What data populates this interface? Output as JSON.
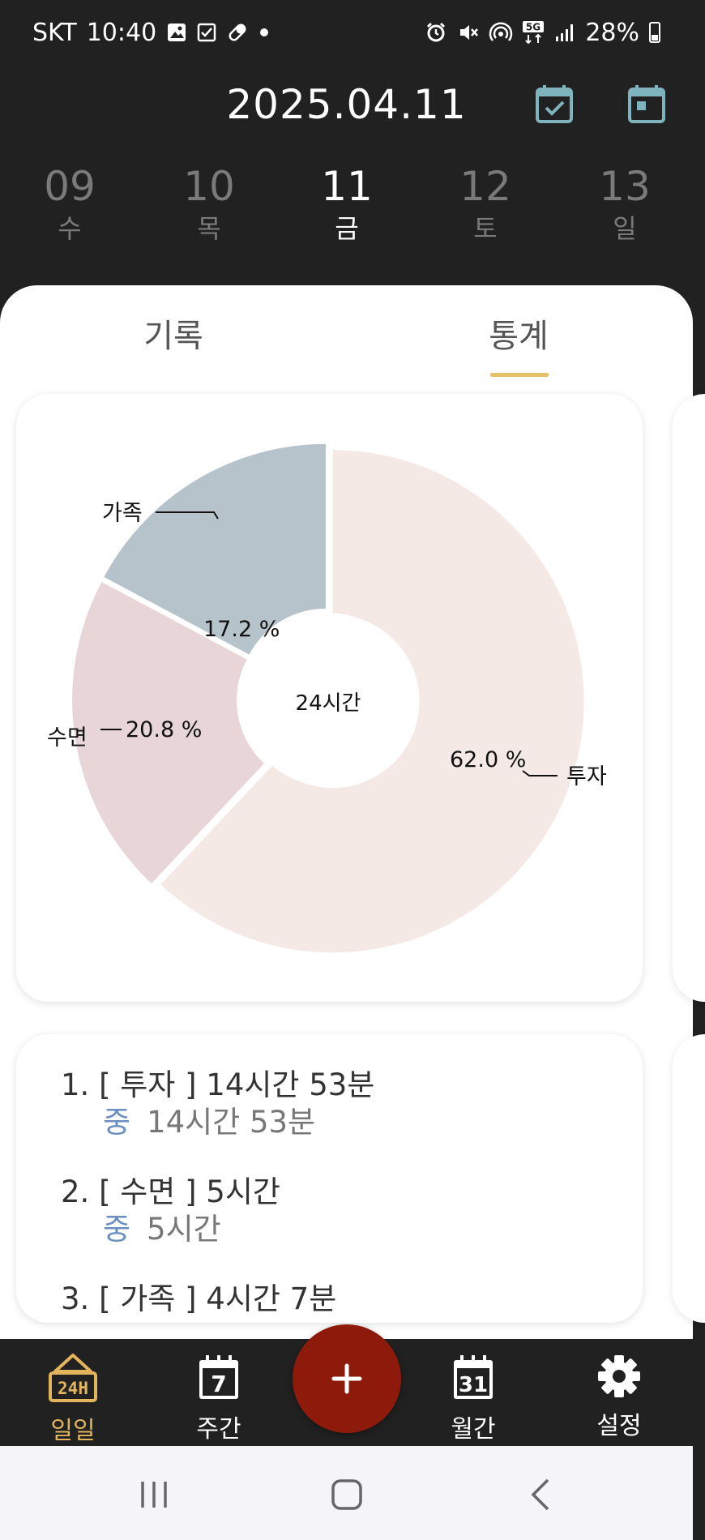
{
  "status_bar": {
    "carrier": "SKT",
    "time": "10:40",
    "network": "5G",
    "battery": "28%"
  },
  "header": {
    "date": "2025.04.11"
  },
  "days": [
    {
      "num": "09",
      "dow": "수"
    },
    {
      "num": "10",
      "dow": "목"
    },
    {
      "num": "11",
      "dow": "금",
      "active": true
    },
    {
      "num": "12",
      "dow": "토"
    },
    {
      "num": "13",
      "dow": "일"
    }
  ],
  "tabs": [
    {
      "label": "기록"
    },
    {
      "label": "통계",
      "active": true
    }
  ],
  "chart_data": {
    "type": "pie",
    "center_label": "24시간",
    "slices": [
      {
        "name": "투자",
        "value": 62.0,
        "label": "62.0 %",
        "color": "#f5e9e6"
      },
      {
        "name": "수면",
        "value": 20.8,
        "label": "20.8 %",
        "color": "#e8d5d7"
      },
      {
        "name": "가족",
        "value": 17.2,
        "label": "17.2 %",
        "color": "#b6c3cb"
      }
    ]
  },
  "ranking": [
    {
      "title": "1. [ 투자 ]  14시간 53분",
      "level": "중",
      "duration": "14시간 53분"
    },
    {
      "title": "2. [ 수면 ]  5시간",
      "level": "중",
      "duration": "5시간"
    },
    {
      "title": "3. [ 가족 ]  4시간 7분",
      "level": "",
      "duration": ""
    }
  ],
  "bottom_nav": [
    {
      "label": "일일",
      "icon": "24h-icon",
      "active": true
    },
    {
      "label": "주간",
      "icon": "calendar-7-icon",
      "badge": "7"
    },
    {
      "label": "월간",
      "icon": "calendar-31-icon",
      "badge": "31"
    },
    {
      "label": "설정",
      "icon": "gear-icon"
    }
  ],
  "fab": {
    "icon": "plus-icon"
  },
  "colors": {
    "background": "#212121",
    "accent": "#e2b55c",
    "fab": "#8e1a0c",
    "header_icon": "#7fb3bd",
    "level_text": "#6b8fc0"
  }
}
